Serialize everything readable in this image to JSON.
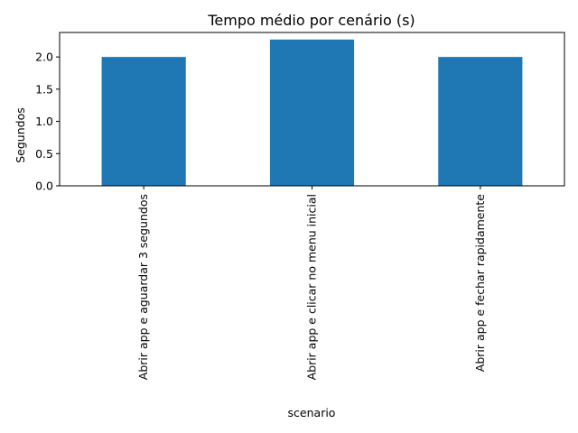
{
  "chart_data": {
    "type": "bar",
    "title": "Tempo médio por cenário (s)",
    "xlabel": "scenario",
    "ylabel": "Segundos",
    "categories": [
      "Abrir app e aguardar 3 segundos",
      "Abrir app e clicar no menu inicial",
      "Abrir app e fechar rapidamente"
    ],
    "values": [
      2.0,
      2.27,
      2.0
    ],
    "ylim": [
      0,
      2.38
    ],
    "yticks": [
      "0.0",
      "0.5",
      "1.0",
      "1.5",
      "2.0"
    ],
    "bar_color": "#1f77b4",
    "grid": false,
    "legend": "none"
  }
}
